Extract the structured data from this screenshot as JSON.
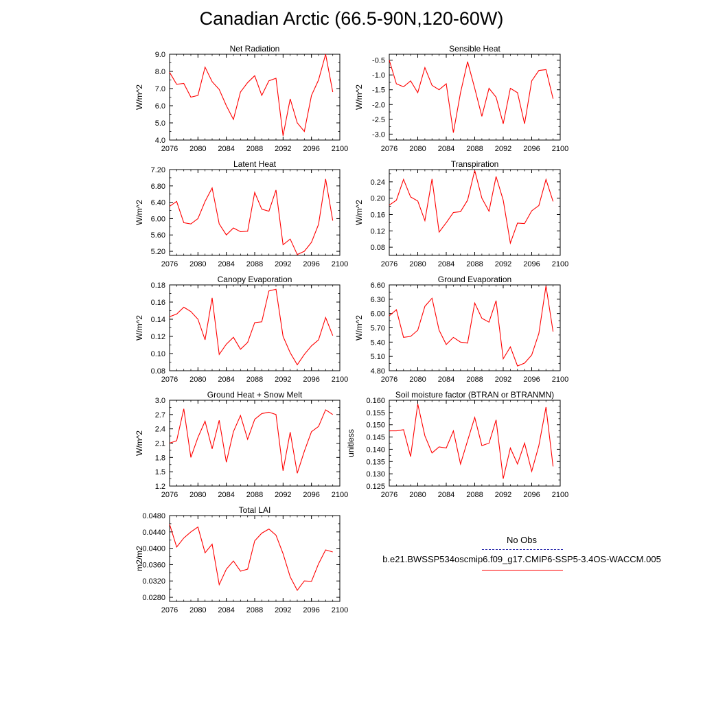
{
  "title": "Canadian Arctic (66.5-90N,120-60W)",
  "legend": {
    "obs_label": "No Obs",
    "model_label": "b.e21.BWSSP534oscmip6.f09_g17.CMIP6-SSP5-3.4OS-WACCM.005",
    "obs_color": "#1a1aa6",
    "model_color": "#ff0000"
  },
  "chart_data": [
    {
      "type": "line",
      "title": "Net Radiation",
      "ylabel": "W/m^2",
      "xlim": [
        2076,
        2100
      ],
      "ylim": [
        4.0,
        9.0
      ],
      "xticks": [
        "2076",
        "2080",
        "2084",
        "2088",
        "2092",
        "2096",
        "2100"
      ],
      "yticks": [
        "4.0",
        "5.0",
        "6.0",
        "7.0",
        "8.0",
        "9.0"
      ],
      "series": [
        {
          "color": "#ff0000",
          "x": [
            2076,
            2077,
            2078,
            2079,
            2080,
            2081,
            2082,
            2083,
            2084,
            2085,
            2086,
            2087,
            2088,
            2089,
            2090,
            2091,
            2092,
            2093,
            2094,
            2095,
            2096,
            2097,
            2098,
            2099
          ],
          "y": [
            7.95,
            7.25,
            7.3,
            6.5,
            6.6,
            8.25,
            7.4,
            6.95,
            6.0,
            5.2,
            6.8,
            7.35,
            7.75,
            6.6,
            7.45,
            7.6,
            4.25,
            6.4,
            5.0,
            4.5,
            6.6,
            7.5,
            9.0,
            6.8
          ]
        }
      ]
    },
    {
      "type": "line",
      "title": "Sensible Heat",
      "ylabel": "W/m^2",
      "xlim": [
        2076,
        2100
      ],
      "ylim": [
        -3.2,
        -0.3
      ],
      "xticks": [
        "2076",
        "2080",
        "2084",
        "2088",
        "2092",
        "2096",
        "2100"
      ],
      "yticks": [
        "-3.0",
        "-2.5",
        "-2.0",
        "-1.5",
        "-1.0",
        "-0.5"
      ],
      "series": [
        {
          "color": "#ff0000",
          "x": [
            2076,
            2077,
            2078,
            2079,
            2080,
            2081,
            2082,
            2083,
            2084,
            2085,
            2086,
            2087,
            2088,
            2089,
            2090,
            2091,
            2092,
            2093,
            2094,
            2095,
            2096,
            2097,
            2098,
            2099
          ],
          "y": [
            -0.5,
            -1.3,
            -1.4,
            -1.2,
            -1.6,
            -0.75,
            -1.35,
            -1.5,
            -1.3,
            -2.95,
            -1.6,
            -0.55,
            -1.45,
            -2.4,
            -1.45,
            -1.75,
            -2.65,
            -1.45,
            -1.6,
            -2.65,
            -1.2,
            -0.85,
            -0.82,
            -1.8
          ]
        }
      ]
    },
    {
      "type": "line",
      "title": "Latent Heat",
      "ylabel": "W/m^2",
      "xlim": [
        2076,
        2100
      ],
      "ylim": [
        5.1,
        7.2
      ],
      "xticks": [
        "2076",
        "2080",
        "2084",
        "2088",
        "2092",
        "2096",
        "2100"
      ],
      "yticks": [
        "5.20",
        "5.60",
        "6.00",
        "6.40",
        "6.80",
        "7.20"
      ],
      "series": [
        {
          "color": "#ff0000",
          "x": [
            2076,
            2077,
            2078,
            2079,
            2080,
            2081,
            2082,
            2083,
            2084,
            2085,
            2086,
            2087,
            2088,
            2089,
            2090,
            2091,
            2092,
            2093,
            2094,
            2095,
            2096,
            2097,
            2098,
            2099
          ],
          "y": [
            6.3,
            6.42,
            5.9,
            5.87,
            6.0,
            6.42,
            6.75,
            5.87,
            5.6,
            5.77,
            5.68,
            5.69,
            6.64,
            6.23,
            6.18,
            6.7,
            5.36,
            5.5,
            5.12,
            5.2,
            5.42,
            5.86,
            6.97,
            5.95
          ]
        }
      ]
    },
    {
      "type": "line",
      "title": "Transpiration",
      "ylabel": "W/m^2",
      "xlim": [
        2076,
        2100
      ],
      "ylim": [
        0.06,
        0.27
      ],
      "xticks": [
        "2076",
        "2080",
        "2084",
        "2088",
        "2092",
        "2096",
        "2100"
      ],
      "yticks": [
        "0.08",
        "0.12",
        "0.16",
        "0.20",
        "0.24"
      ],
      "series": [
        {
          "color": "#ff0000",
          "x": [
            2076,
            2077,
            2078,
            2079,
            2080,
            2081,
            2082,
            2083,
            2084,
            2085,
            2086,
            2087,
            2088,
            2089,
            2090,
            2091,
            2092,
            2093,
            2094,
            2095,
            2096,
            2097,
            2098,
            2099
          ],
          "y": [
            0.183,
            0.195,
            0.246,
            0.203,
            0.193,
            0.145,
            0.247,
            0.117,
            0.14,
            0.165,
            0.167,
            0.195,
            0.268,
            0.2,
            0.168,
            0.253,
            0.195,
            0.09,
            0.139,
            0.138,
            0.169,
            0.182,
            0.246,
            0.192
          ]
        }
      ]
    },
    {
      "type": "line",
      "title": "Canopy Evaporation",
      "ylabel": "W/m^2",
      "xlim": [
        2076,
        2100
      ],
      "ylim": [
        0.08,
        0.18
      ],
      "xticks": [
        "2076",
        "2080",
        "2084",
        "2088",
        "2092",
        "2096",
        "2100"
      ],
      "yticks": [
        "0.08",
        "0.10",
        "0.12",
        "0.14",
        "0.16",
        "0.18"
      ],
      "series": [
        {
          "color": "#ff0000",
          "x": [
            2076,
            2077,
            2078,
            2079,
            2080,
            2081,
            2082,
            2083,
            2084,
            2085,
            2086,
            2087,
            2088,
            2089,
            2090,
            2091,
            2092,
            2093,
            2094,
            2095,
            2096,
            2097,
            2098,
            2099
          ],
          "y": [
            0.143,
            0.146,
            0.154,
            0.149,
            0.14,
            0.116,
            0.165,
            0.099,
            0.111,
            0.119,
            0.105,
            0.113,
            0.136,
            0.137,
            0.173,
            0.175,
            0.12,
            0.101,
            0.087,
            0.099,
            0.109,
            0.116,
            0.142,
            0.121
          ]
        }
      ]
    },
    {
      "type": "line",
      "title": "Ground Evaporation",
      "ylabel": "W/m^2",
      "xlim": [
        2076,
        2100
      ],
      "ylim": [
        4.8,
        6.6
      ],
      "xticks": [
        "2076",
        "2080",
        "2084",
        "2088",
        "2092",
        "2096",
        "2100"
      ],
      "yticks": [
        "4.80",
        "5.10",
        "5.40",
        "5.70",
        "6.00",
        "6.30",
        "6.60"
      ],
      "series": [
        {
          "color": "#ff0000",
          "x": [
            2076,
            2077,
            2078,
            2079,
            2080,
            2081,
            2082,
            2083,
            2084,
            2085,
            2086,
            2087,
            2088,
            2089,
            2090,
            2091,
            2092,
            2093,
            2094,
            2095,
            2096,
            2097,
            2098,
            2099
          ],
          "y": [
            5.95,
            6.08,
            5.5,
            5.52,
            5.65,
            6.15,
            6.32,
            5.65,
            5.35,
            5.5,
            5.4,
            5.38,
            6.22,
            5.9,
            5.82,
            6.27,
            5.05,
            5.3,
            4.9,
            4.96,
            5.13,
            5.58,
            6.58,
            5.62
          ]
        }
      ]
    },
    {
      "type": "line",
      "title": "Ground Heat + Snow Melt",
      "ylabel": "W/m^2",
      "xlim": [
        2076,
        2100
      ],
      "ylim": [
        1.2,
        3.0
      ],
      "xticks": [
        "2076",
        "2080",
        "2084",
        "2088",
        "2092",
        "2096",
        "2100"
      ],
      "yticks": [
        "1.2",
        "1.5",
        "1.8",
        "2.1",
        "2.4",
        "2.7",
        "3.0"
      ],
      "series": [
        {
          "color": "#ff0000",
          "x": [
            2076,
            2077,
            2078,
            2079,
            2080,
            2081,
            2082,
            2083,
            2084,
            2085,
            2086,
            2087,
            2088,
            2089,
            2090,
            2091,
            2092,
            2093,
            2094,
            2095,
            2096,
            2097,
            2098,
            2099
          ],
          "y": [
            2.1,
            2.15,
            2.82,
            1.8,
            2.22,
            2.56,
            1.98,
            2.58,
            1.7,
            2.34,
            2.68,
            2.18,
            2.6,
            2.72,
            2.75,
            2.7,
            1.52,
            2.33,
            1.47,
            1.93,
            2.34,
            2.45,
            2.8,
            2.7
          ]
        }
      ]
    },
    {
      "type": "line",
      "title": "Soil moisture factor (BTRAN or BTRANMN)",
      "ylabel": "unitless",
      "xlim": [
        2076,
        2100
      ],
      "ylim": [
        0.125,
        0.16
      ],
      "xticks": [
        "2076",
        "2080",
        "2084",
        "2088",
        "2092",
        "2096",
        "2100"
      ],
      "yticks": [
        "0.125",
        "0.130",
        "0.135",
        "0.140",
        "0.145",
        "0.150",
        "0.155",
        "0.160"
      ],
      "series": [
        {
          "color": "#ff0000",
          "x": [
            2076,
            2077,
            2078,
            2079,
            2080,
            2081,
            2082,
            2083,
            2084,
            2085,
            2086,
            2087,
            2088,
            2089,
            2090,
            2091,
            2092,
            2093,
            2094,
            2095,
            2096,
            2097,
            2098,
            2099
          ],
          "y": [
            0.1475,
            0.1475,
            0.148,
            0.137,
            0.1585,
            0.1455,
            0.1385,
            0.141,
            0.1405,
            0.1475,
            0.134,
            0.1435,
            0.153,
            0.1415,
            0.1425,
            0.152,
            0.128,
            0.1405,
            0.134,
            0.1425,
            0.131,
            0.1415,
            0.1572,
            0.133
          ]
        }
      ]
    },
    {
      "type": "line",
      "title": "Total LAI",
      "ylabel": "m2/m2",
      "xlim": [
        2076,
        2100
      ],
      "ylim": [
        0.027,
        0.048
      ],
      "xticks": [
        "2076",
        "2080",
        "2084",
        "2088",
        "2092",
        "2096",
        "2100"
      ],
      "yticks": [
        "0.0280",
        "0.0320",
        "0.0360",
        "0.0400",
        "0.0440",
        "0.0480"
      ],
      "series": [
        {
          "color": "#ff0000",
          "x": [
            2076,
            2077,
            2078,
            2079,
            2080,
            2081,
            2082,
            2083,
            2084,
            2085,
            2086,
            2087,
            2088,
            2089,
            2090,
            2091,
            2092,
            2093,
            2094,
            2095,
            2096,
            2097,
            2098,
            2099
          ],
          "y": [
            0.0459,
            0.0403,
            0.0425,
            0.044,
            0.0452,
            0.0389,
            0.041,
            0.0311,
            0.0349,
            0.0369,
            0.0344,
            0.0349,
            0.0418,
            0.0437,
            0.0447,
            0.0432,
            0.0387,
            0.033,
            0.0297,
            0.032,
            0.0319,
            0.0362,
            0.0396,
            0.0391
          ]
        }
      ]
    }
  ]
}
